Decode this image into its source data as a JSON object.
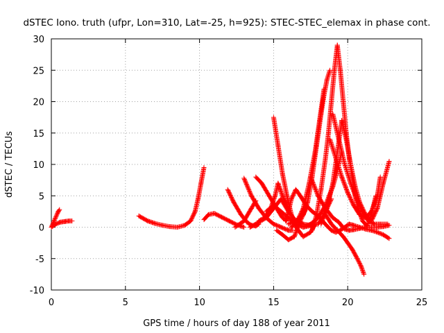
{
  "chart_data": {
    "type": "scatter",
    "title": "dSTEC Iono. truth (ufpr, Lon=310, Lat=-25, h=925): STEC-STEC_elemax in phase cont.",
    "xlabel": "GPS time / hours of day 188 of year 2011",
    "ylabel": "dSTEC  / TECUs",
    "xlim": [
      0,
      25
    ],
    "ylim": [
      -10,
      30
    ],
    "xticks": [
      0,
      5,
      10,
      15,
      20,
      25
    ],
    "yticks": [
      -10,
      -5,
      0,
      5,
      10,
      15,
      20,
      25,
      30
    ],
    "grid": true,
    "marker": "+",
    "color": "#ff0000",
    "series": [
      {
        "x": [
          0.0,
          0.15,
          0.3,
          0.45,
          0.55
        ],
        "y": [
          0.0,
          0.8,
          1.6,
          2.4,
          2.8
        ]
      },
      {
        "x": [
          0.0,
          0.3,
          0.6,
          0.9,
          1.2,
          1.4
        ],
        "y": [
          0.0,
          0.5,
          0.8,
          0.9,
          1.0,
          1.0
        ]
      },
      {
        "x": [
          5.9,
          6.5,
          7.0,
          7.5,
          8.0,
          8.5,
          9.0,
          9.4,
          9.7,
          9.9,
          10.1,
          10.3
        ],
        "y": [
          1.8,
          1.0,
          0.6,
          0.3,
          0.1,
          0.0,
          0.3,
          1.0,
          2.5,
          4.5,
          7.0,
          9.5
        ]
      },
      {
        "x": [
          10.3,
          10.6,
          11.0,
          11.5,
          12.0,
          12.5,
          13.0
        ],
        "y": [
          1.2,
          2.0,
          2.2,
          1.6,
          1.0,
          0.4,
          0.0
        ]
      },
      {
        "x": [
          11.9,
          12.3,
          12.8,
          13.2,
          13.5,
          13.8,
          14.0
        ],
        "y": [
          6.0,
          4.0,
          2.0,
          0.8,
          0.3,
          0.2,
          0.5
        ]
      },
      {
        "x": [
          12.4,
          13.0,
          13.5,
          13.8
        ],
        "y": [
          0.0,
          1.0,
          3.0,
          4.2
        ]
      },
      {
        "x": [
          13.0,
          13.5,
          14.0,
          14.5,
          15.0,
          15.5,
          16.0,
          16.3
        ],
        "y": [
          7.8,
          5.0,
          3.0,
          1.5,
          0.5,
          0.0,
          -0.5,
          -0.5
        ]
      },
      {
        "x": [
          13.4,
          13.8,
          14.5,
          15.0,
          15.5,
          16.0,
          16.5,
          17.0
        ],
        "y": [
          0.0,
          0.5,
          1.5,
          3.0,
          4.5,
          2.5,
          1.0,
          0.5
        ]
      },
      {
        "x": [
          13.8,
          14.2,
          14.7,
          15.2,
          15.6,
          15.9
        ],
        "y": [
          8.0,
          7.0,
          5.0,
          3.0,
          1.5,
          1.0
        ]
      },
      {
        "x": [
          14.0,
          14.4,
          14.8,
          15.1,
          15.3,
          15.6,
          16.0
        ],
        "y": [
          1.0,
          1.5,
          3.0,
          5.0,
          7.0,
          5.0,
          3.0
        ]
      },
      {
        "x": [
          14.5,
          15.0,
          15.5,
          16.0,
          16.5,
          17.0,
          17.6
        ],
        "y": [
          2.5,
          3.5,
          2.5,
          1.5,
          0.5,
          0.0,
          0.3
        ]
      },
      {
        "x": [
          15.0,
          15.3,
          15.6,
          15.9,
          16.2,
          16.5,
          17.0,
          17.5,
          17.8
        ],
        "y": [
          17.5,
          13.0,
          8.5,
          5.0,
          2.0,
          0.0,
          -1.5,
          -0.8,
          0.5
        ]
      },
      {
        "x": [
          15.2,
          15.6,
          16.0,
          16.4,
          16.8,
          17.2
        ],
        "y": [
          -0.5,
          -1.2,
          -2.0,
          -1.5,
          1.0,
          3.0
        ]
      },
      {
        "x": [
          15.8,
          16.0,
          16.2,
          16.5,
          16.8,
          17.2,
          17.6,
          18.0,
          18.3,
          18.6,
          18.9,
          19.2,
          19.5,
          19.8,
          20.1,
          20.4,
          20.8,
          21.2,
          21.6,
          22.0,
          22.4,
          22.8
        ],
        "y": [
          1.0,
          2.5,
          4.5,
          6.0,
          5.0,
          3.5,
          2.5,
          1.8,
          1.0,
          0.2,
          -0.5,
          -0.8,
          -0.5,
          0.0,
          0.5,
          0.3,
          0.0,
          -0.3,
          -0.5,
          -0.8,
          -1.2,
          -1.8
        ]
      },
      {
        "x": [
          16.0,
          16.5,
          17.0,
          17.3,
          17.6,
          17.9,
          18.2,
          18.4,
          18.6,
          18.8
        ],
        "y": [
          0.5,
          1.0,
          2.0,
          4.0,
          8.0,
          13.0,
          18.0,
          21.0,
          23.5,
          25.0
        ]
      },
      {
        "x": [
          16.2,
          16.6,
          17.0,
          17.4,
          17.8,
          18.1,
          18.4
        ],
        "y": [
          0.0,
          1.0,
          3.0,
          7.0,
          12.0,
          17.0,
          22.0
        ]
      },
      {
        "x": [
          16.5,
          17.0,
          17.5,
          18.0,
          18.3,
          18.6,
          18.9
        ],
        "y": [
          1.0,
          0.5,
          0.3,
          0.5,
          1.5,
          3.0,
          4.5
        ]
      },
      {
        "x": [
          17.0,
          17.5,
          18.0,
          18.5,
          19.0,
          19.3,
          19.6
        ],
        "y": [
          0.0,
          0.5,
          1.5,
          3.5,
          6.5,
          9.0,
          12.0
        ]
      },
      {
        "x": [
          17.5,
          18.0,
          18.5,
          19.0,
          19.4,
          19.6,
          19.8,
          20.1,
          20.4,
          20.8,
          21.2,
          21.6,
          22.0,
          22.4,
          22.8
        ],
        "y": [
          8.0,
          5.0,
          3.0,
          1.5,
          0.8,
          0.2,
          -0.3,
          -0.5,
          -0.4,
          -0.2,
          0.0,
          0.0,
          0.0,
          0.1,
          0.3
        ]
      },
      {
        "x": [
          17.6,
          17.9,
          18.2,
          18.5,
          18.7,
          18.9,
          19.1,
          19.3,
          19.5,
          19.7,
          19.9,
          20.1,
          20.3,
          20.5,
          20.7,
          21.0,
          21.3,
          21.6,
          21.9
        ],
        "y": [
          -0.5,
          2.0,
          6.0,
          11.0,
          15.0,
          20.0,
          25.0,
          29.0,
          25.0,
          20.0,
          15.0,
          11.0,
          8.0,
          5.0,
          3.0,
          1.0,
          0.2,
          2.0,
          5.0
        ]
      },
      {
        "x": [
          18.2,
          18.6,
          19.0,
          19.3,
          19.6,
          19.9,
          20.2,
          20.5,
          20.8,
          21.2,
          21.6,
          22.0,
          22.4,
          22.8
        ],
        "y": [
          0.5,
          3.0,
          7.0,
          12.0,
          17.0,
          14.0,
          10.0,
          6.5,
          4.0,
          2.0,
          1.0,
          3.0,
          7.0,
          10.5
        ]
      },
      {
        "x": [
          18.5,
          18.9,
          19.3,
          19.7,
          20.0,
          20.3,
          20.6,
          20.9,
          21.1
        ],
        "y": [
          2.0,
          0.5,
          -0.5,
          -1.5,
          -2.5,
          -3.5,
          -4.8,
          -6.2,
          -7.5
        ]
      },
      {
        "x": [
          18.8,
          19.2,
          19.6,
          20.0,
          20.4,
          20.8,
          21.2,
          21.6,
          22.0,
          22.2
        ],
        "y": [
          14.0,
          11.0,
          8.0,
          5.5,
          3.5,
          2.0,
          1.5,
          2.5,
          5.0,
          8.0
        ]
      },
      {
        "x": [
          19.0,
          19.4,
          19.8,
          20.2,
          20.6,
          21.0,
          21.4,
          21.8,
          22.2,
          22.7
        ],
        "y": [
          18.0,
          14.0,
          10.0,
          7.0,
          4.5,
          2.5,
          1.0,
          0.5,
          0.5,
          0.5
        ]
      }
    ]
  }
}
